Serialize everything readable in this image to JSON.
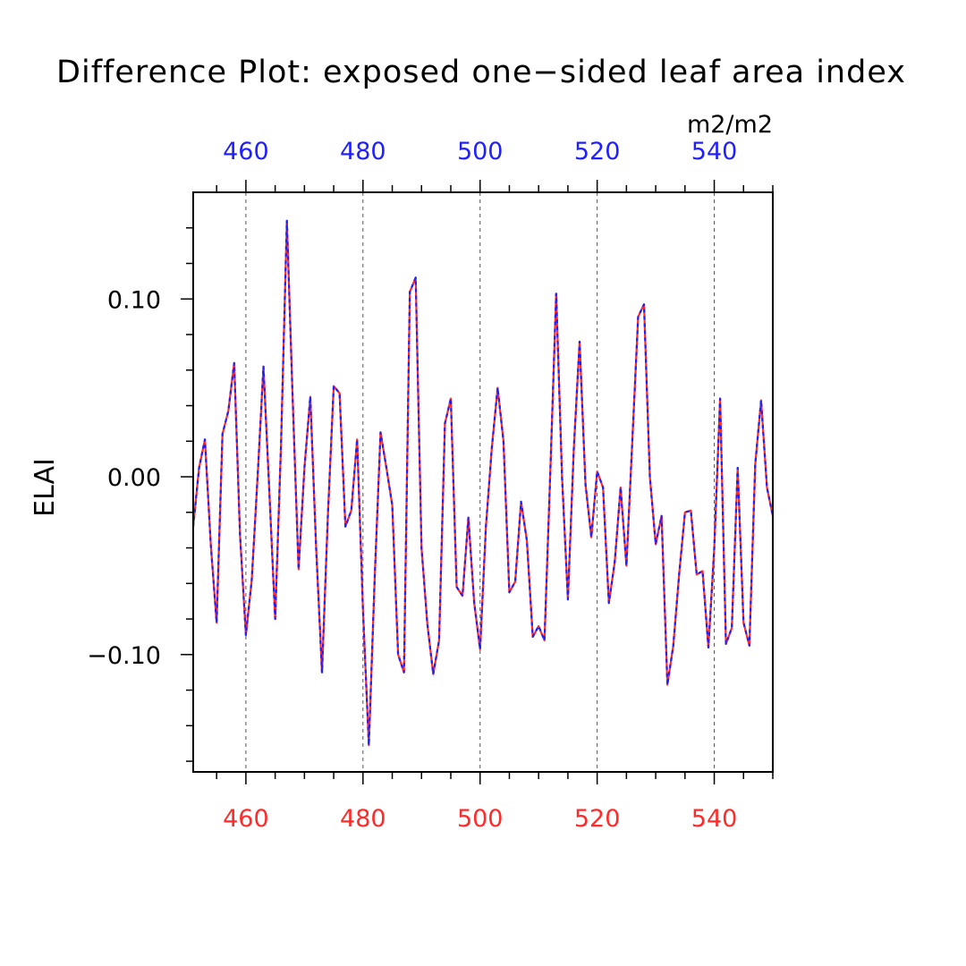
{
  "chart_data": {
    "type": "line",
    "title": "Difference Plot: exposed one−sided leaf area index",
    "units": "m2/m2",
    "ylabel": "ELAI",
    "xlabel": "",
    "xlim": [
      451,
      550
    ],
    "ylim": [
      -0.166,
      0.16
    ],
    "x_ticks_major": [
      460,
      480,
      500,
      520,
      540
    ],
    "x_tick_labels": [
      "460",
      "480",
      "500",
      "520",
      "540"
    ],
    "y_ticks_major": [
      -0.1,
      0.0,
      0.1
    ],
    "y_tick_labels": [
      "−0.10",
      "0.00",
      "0.10"
    ],
    "vertical_gridlines": "dashed, at major x ticks",
    "colors": {
      "top_axis_labels": "#1f1fff",
      "bottom_axis_labels": "#ff2a2a",
      "series_solid": "#ff2a2a",
      "series_dashed": "#1f1fff"
    },
    "x": [
      451,
      452,
      453,
      454,
      455,
      456,
      457,
      458,
      459,
      460,
      461,
      462,
      463,
      464,
      465,
      466,
      467,
      468,
      469,
      470,
      471,
      472,
      473,
      474,
      475,
      476,
      477,
      478,
      479,
      480,
      481,
      482,
      483,
      484,
      485,
      486,
      487,
      488,
      489,
      490,
      491,
      492,
      493,
      494,
      495,
      496,
      497,
      498,
      499,
      500,
      501,
      502,
      503,
      504,
      505,
      506,
      507,
      508,
      509,
      510,
      511,
      512,
      513,
      514,
      515,
      516,
      517,
      518,
      519,
      520,
      521,
      522,
      523,
      524,
      525,
      526,
      527,
      528,
      529,
      530,
      531,
      532,
      533,
      534,
      535,
      536,
      537,
      538,
      539,
      540,
      541,
      542,
      543,
      544,
      545,
      546,
      547,
      548,
      549,
      550
    ],
    "series": [
      {
        "values": [
          -0.028,
          0.005,
          0.021,
          -0.038,
          -0.082,
          0.024,
          0.037,
          0.064,
          -0.033,
          -0.089,
          -0.058,
          0.0,
          0.062,
          -0.008,
          -0.08,
          0.018,
          0.144,
          0.043,
          -0.052,
          0.005,
          0.045,
          -0.04,
          -0.11,
          -0.022,
          0.051,
          0.047,
          -0.028,
          -0.019,
          0.021,
          -0.075,
          -0.151,
          -0.057,
          0.025,
          0.005,
          -0.016,
          -0.1,
          -0.11,
          0.104,
          0.112,
          -0.04,
          -0.083,
          -0.111,
          -0.092,
          0.03,
          0.044,
          -0.062,
          -0.067,
          -0.023,
          -0.071,
          -0.097,
          -0.028,
          0.016,
          0.05,
          0.02,
          -0.065,
          -0.059,
          -0.014,
          -0.036,
          -0.09,
          -0.084,
          -0.092,
          0.003,
          0.103,
          0.0,
          -0.069,
          0.015,
          0.076,
          -0.004,
          -0.034,
          0.003,
          -0.006,
          -0.071,
          -0.048,
          -0.006,
          -0.05,
          0.02,
          0.09,
          0.097,
          0.0,
          -0.038,
          -0.022,
          -0.117,
          -0.095,
          -0.055,
          -0.02,
          -0.019,
          -0.055,
          -0.053,
          -0.096,
          -0.04,
          0.044,
          -0.094,
          -0.085,
          0.005,
          -0.082,
          -0.095,
          0.007,
          0.043,
          -0.006,
          -0.022
        ]
      }
    ]
  }
}
